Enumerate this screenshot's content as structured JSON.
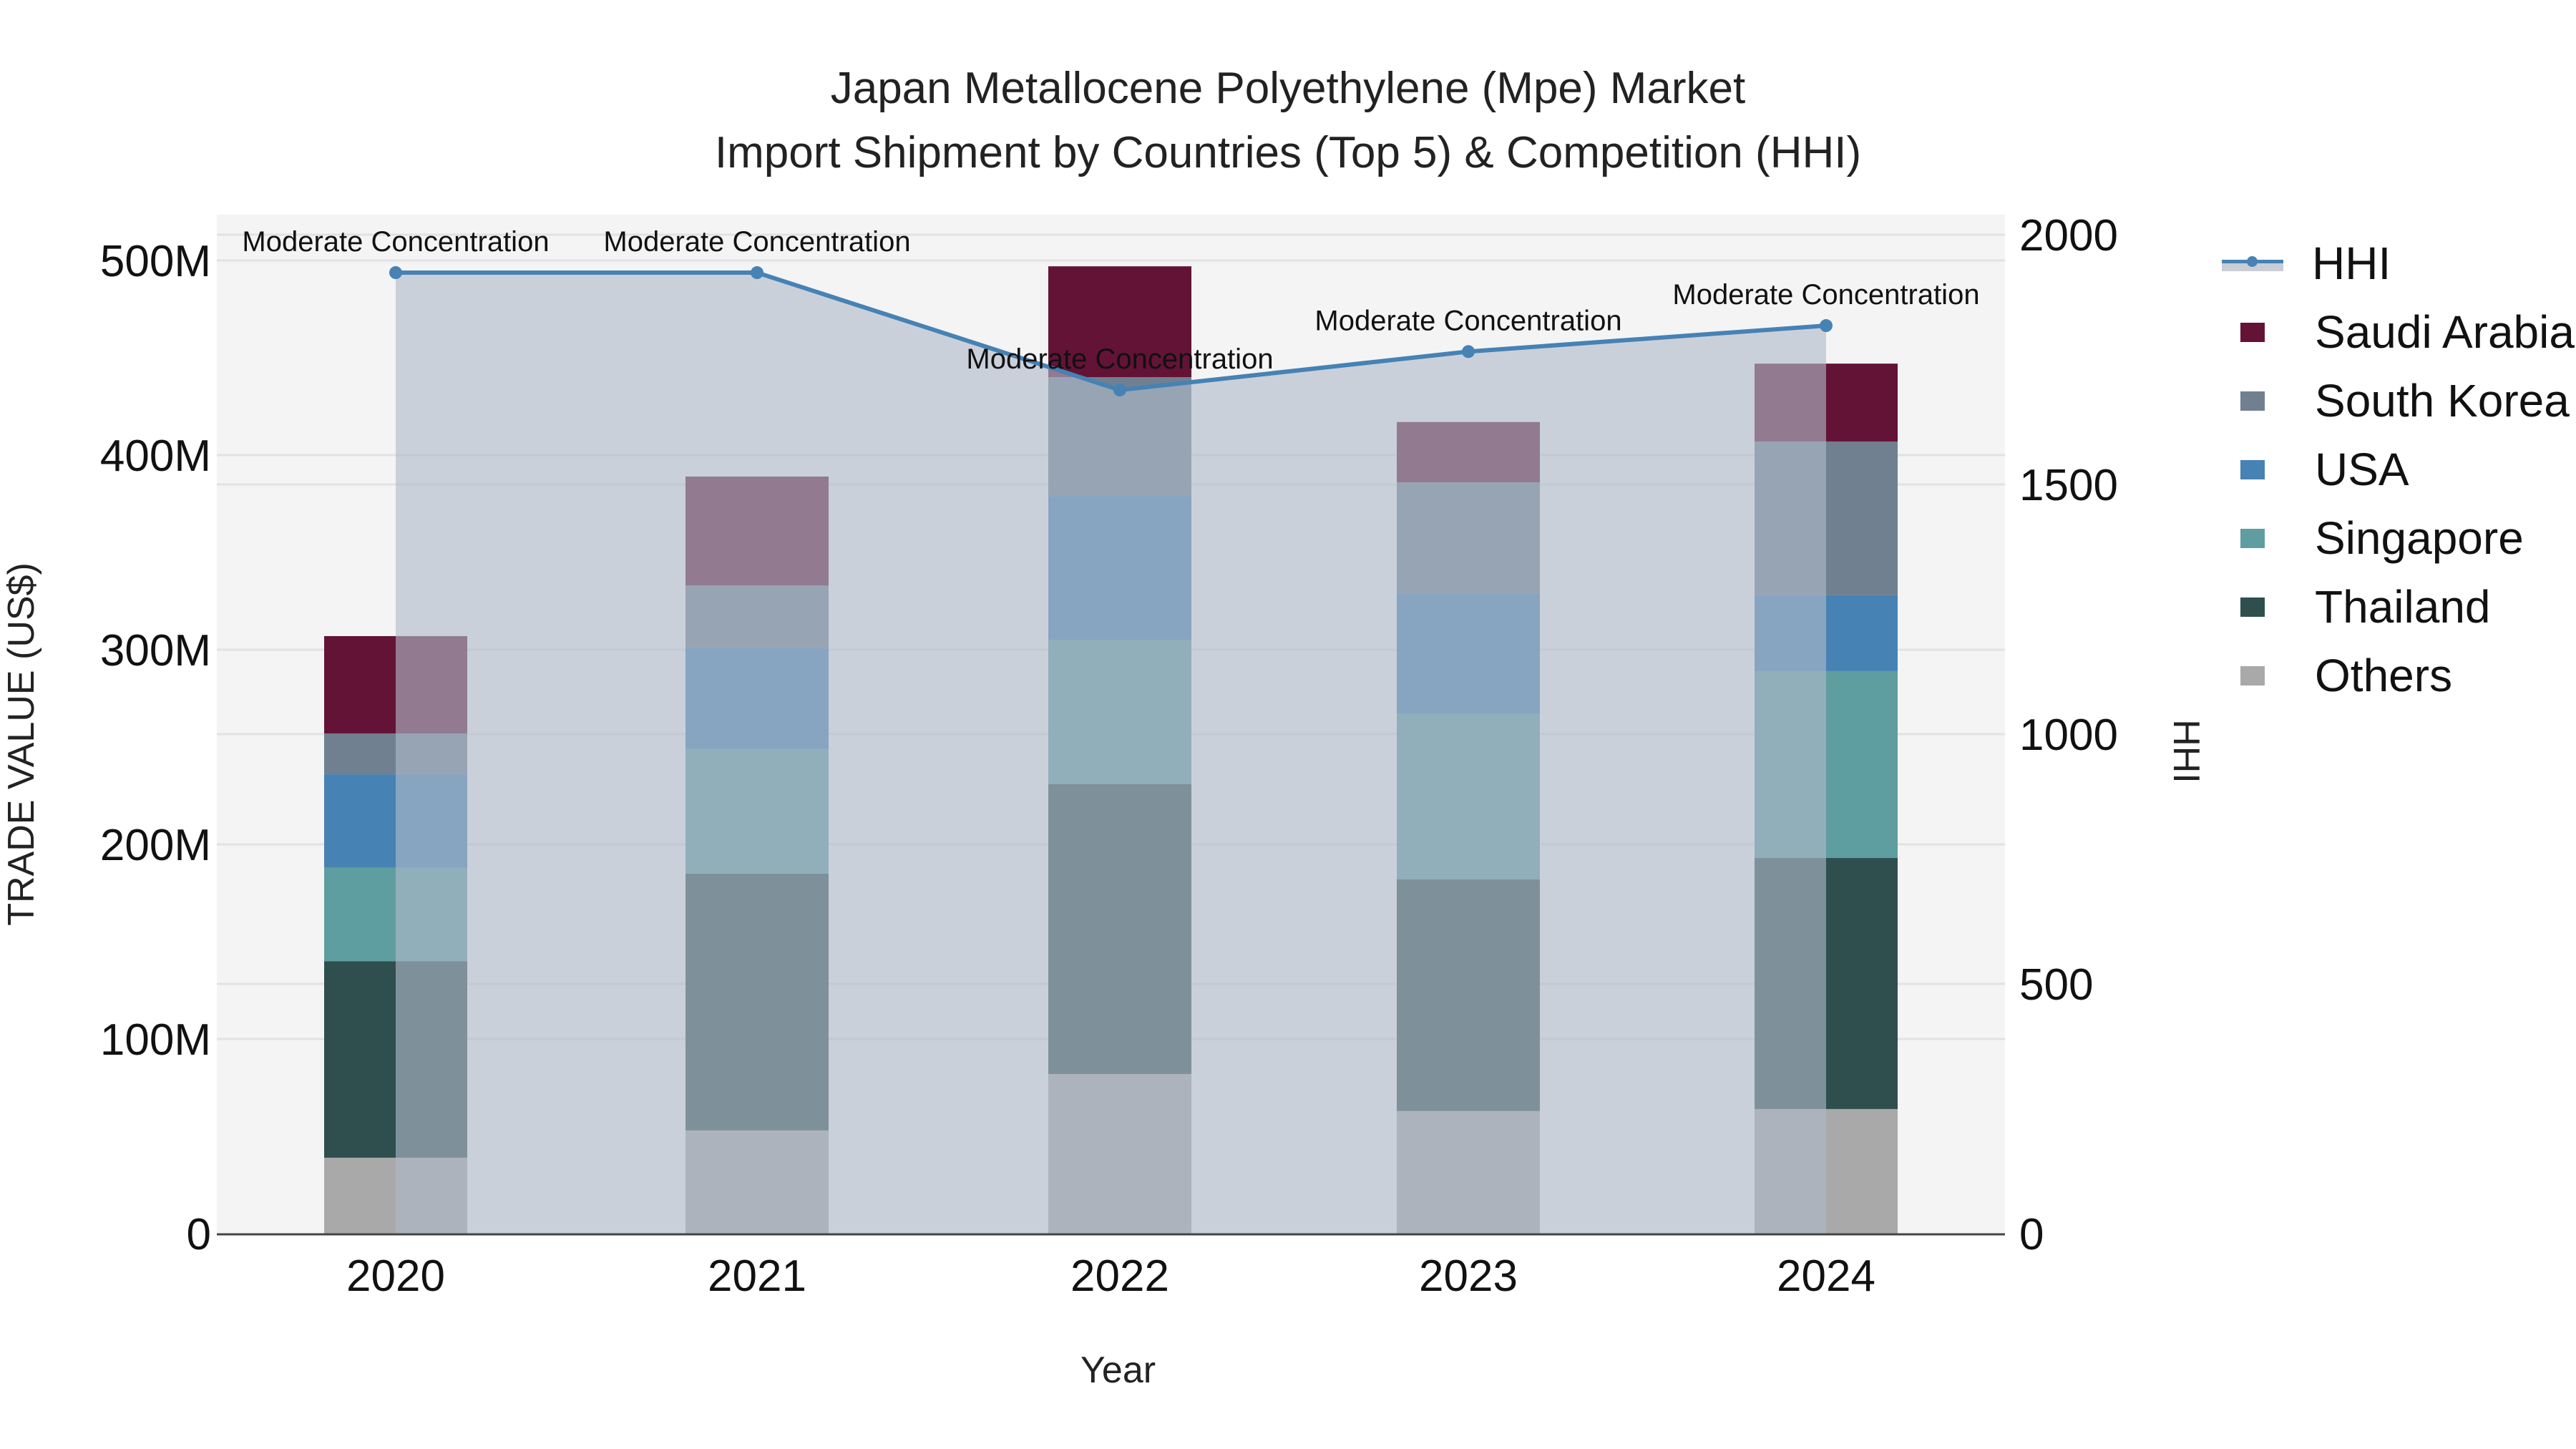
{
  "title": {
    "line1": "Japan Metallocene Polyethylene (Mpe) Market",
    "line2": "Import Shipment by Countries (Top 5) & Competition (HHI)"
  },
  "axes": {
    "x_title": "Year",
    "y_left_title": "TRADE VALUE (US$)",
    "y_right_title": "HHI",
    "y_left_ticks": [
      "0",
      "100M",
      "200M",
      "300M",
      "400M",
      "500M"
    ],
    "y_right_ticks": [
      "0",
      "500",
      "1000",
      "1500",
      "2000"
    ],
    "x_ticks": [
      "2020",
      "2021",
      "2022",
      "2023",
      "2024"
    ]
  },
  "legend": {
    "items": [
      {
        "label": "HHI",
        "type": "line",
        "color": "#4682b4"
      },
      {
        "label": "Saudi Arabia",
        "type": "bar",
        "color": "#631336"
      },
      {
        "label": "South Korea",
        "type": "bar",
        "color": "#708090"
      },
      {
        "label": "USA",
        "type": "bar",
        "color": "#4682b4"
      },
      {
        "label": "Singapore",
        "type": "bar",
        "color": "#5f9ea0"
      },
      {
        "label": "Thailand",
        "type": "bar",
        "color": "#2f4f4f"
      },
      {
        "label": "Others",
        "type": "bar",
        "color": "#a9a9a9"
      }
    ]
  },
  "annotations": [
    {
      "year": "2020",
      "text": "Moderate Concentration"
    },
    {
      "year": "2021",
      "text": "Moderate Concentration"
    },
    {
      "year": "2022",
      "text": "Moderate Concentration"
    },
    {
      "year": "2023",
      "text": "Moderate Concentration"
    },
    {
      "year": "2024",
      "text": "Moderate Concentration"
    }
  ],
  "chart_data": {
    "type": "bar",
    "stacked": true,
    "title": "Japan Metallocene Polyethylene (Mpe) Market — Import Shipment by Countries (Top 5) & Competition (HHI)",
    "xlabel": "Year",
    "ylabel": "TRADE VALUE (US$)",
    "y2label": "HHI",
    "categories": [
      "2020",
      "2021",
      "2022",
      "2023",
      "2024"
    ],
    "ylim": [
      0,
      520000000
    ],
    "y2lim": [
      0,
      2080
    ],
    "series": [
      {
        "name": "Others",
        "color": "#a9a9a9",
        "values": [
          39000000,
          53000000,
          82000000,
          63000000,
          64000000
        ]
      },
      {
        "name": "Thailand",
        "color": "#2f4f4f",
        "values": [
          101000000,
          132000000,
          149000000,
          119000000,
          129000000
        ]
      },
      {
        "name": "Singapore",
        "color": "#5f9ea0",
        "values": [
          48000000,
          64000000,
          74000000,
          85000000,
          96000000
        ]
      },
      {
        "name": "USA",
        "color": "#4682b4",
        "values": [
          48000000,
          52000000,
          74000000,
          62000000,
          39000000
        ]
      },
      {
        "name": "South Korea",
        "color": "#708090",
        "values": [
          21000000,
          32000000,
          61000000,
          57000000,
          79000000
        ]
      },
      {
        "name": "Saudi Arabia",
        "color": "#631336",
        "values": [
          50000000,
          56000000,
          57000000,
          31000000,
          40000000
        ]
      }
    ],
    "line_series": {
      "name": "HHI",
      "axis": "right",
      "type": "line+area",
      "color": "#4682b4",
      "values": [
        1924,
        1924,
        1689,
        1766,
        1818
      ],
      "labels": [
        "Moderate Concentration",
        "Moderate Concentration",
        "Moderate Concentration",
        "Moderate Concentration",
        "Moderate Concentration"
      ]
    },
    "totals": [
      307000000,
      389000000,
      497000000,
      417000000,
      447000000
    ],
    "grid": true,
    "legend_position": "right"
  }
}
